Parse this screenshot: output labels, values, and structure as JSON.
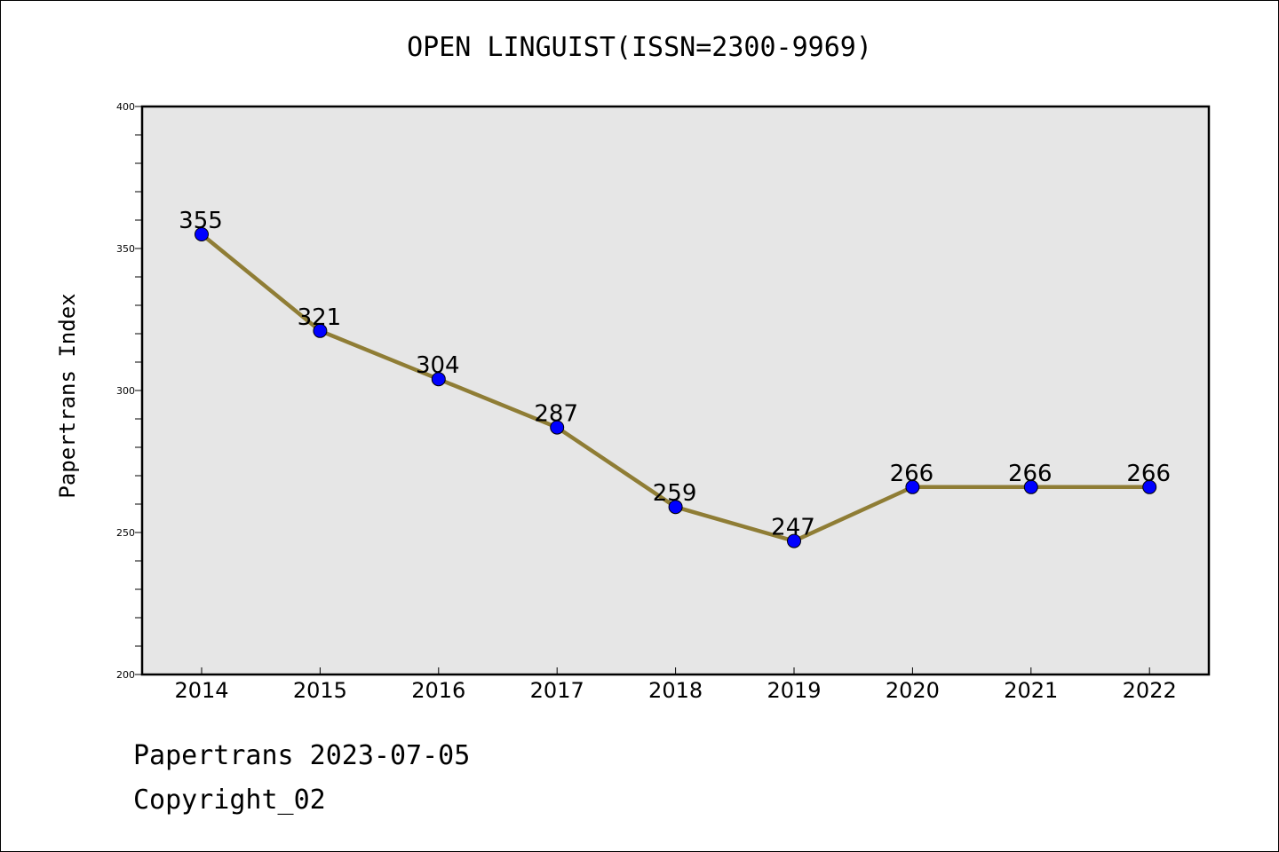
{
  "colors": {
    "plot_background": "#e6e6e6",
    "line": "#8f7d35",
    "marker": "#0000ff",
    "axis": "#000000"
  },
  "footer": {
    "source": "Papertrans 2023-07-05",
    "copyright": "Copyright_02"
  },
  "chart_data": {
    "type": "line",
    "title": "OPEN LINGUIST(ISSN=2300-9969)",
    "xlabel": "",
    "ylabel": "Papertrans Index",
    "categories": [
      "2014",
      "2015",
      "2016",
      "2017",
      "2018",
      "2019",
      "2020",
      "2021",
      "2022"
    ],
    "series": [
      {
        "values": [
          355,
          321,
          304,
          287,
          259,
          247,
          266,
          266,
          266
        ]
      }
    ],
    "data_labels": [
      "355",
      "321",
      "304",
      "287",
      "259",
      "247",
      "266",
      "266",
      "266"
    ],
    "ylim": [
      200,
      400
    ],
    "yticks": [
      200,
      250,
      300,
      350,
      400
    ],
    "grid": false,
    "legend": "none",
    "markers": true
  }
}
